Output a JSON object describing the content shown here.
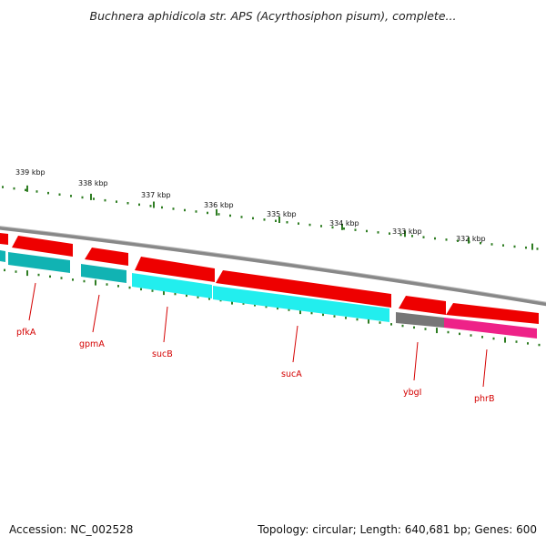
{
  "title": "Buchnera aphidicola str. APS (Acyrthosiphon pisum), complete...",
  "footer": {
    "accession": "Accession: NC_002528",
    "summary": "Topology: circular; Length: 640,681 bp; Genes: 600"
  },
  "colors": {
    "forward_gene": "#ee0000",
    "reverse_teal": "#11b3b3",
    "reverse_cyan": "#22eeee",
    "reverse_gray": "#777777",
    "reverse_pink": "#ee2288",
    "tick_green": "#2e7d22",
    "backbone": "#888888",
    "label_red": "#d40000"
  },
  "kbp_ticks": [
    "339 kbp",
    "338 kbp",
    "337 kbp",
    "336 kbp",
    "335 kbp",
    "334 kbp",
    "333 kbp",
    "332 kbp"
  ],
  "gene_labels": [
    "pfkA",
    "gpmA",
    "sucB",
    "sucA",
    "ybgI",
    "phrB"
  ]
}
